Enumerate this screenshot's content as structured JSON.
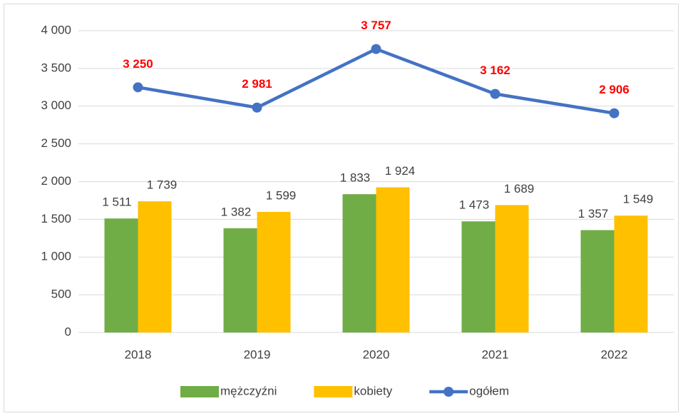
{
  "chart_data": {
    "type": "bar",
    "categories": [
      "2018",
      "2019",
      "2020",
      "2021",
      "2022"
    ],
    "series": [
      {
        "name": "mężczyźni",
        "color": "#70ad47",
        "kind": "bar",
        "values": [
          1511,
          1382,
          1833,
          1473,
          1357
        ],
        "value_labels": [
          "1 511",
          "1 382",
          "1 833",
          "1 473",
          "1 357"
        ]
      },
      {
        "name": "kobiety",
        "color": "#ffc000",
        "kind": "bar",
        "values": [
          1739,
          1599,
          1924,
          1689,
          1549
        ],
        "value_labels": [
          "1 739",
          "1 599",
          "1 924",
          "1 689",
          "1 549"
        ]
      },
      {
        "name": "ogółem",
        "color": "#4472c4",
        "kind": "line",
        "label_color": "#ff0000",
        "values": [
          3250,
          2981,
          3757,
          3162,
          2906
        ],
        "value_labels": [
          "3 250",
          "2 981",
          "3 757",
          "3 162",
          "2 906"
        ]
      }
    ],
    "ylim": [
      0,
      4000
    ],
    "yticks": [
      0,
      500,
      {
        "value": 1000,
        "label": "1 000"
      },
      {
        "value": 1500,
        "label": "1 500"
      },
      {
        "value": 2000,
        "label": "2 000"
      },
      {
        "value": 2500,
        "label": "2 500"
      },
      {
        "value": 3000,
        "label": "3 000"
      },
      {
        "value": 3500,
        "label": "3 500"
      },
      {
        "value": 4000,
        "label": "4 000"
      }
    ],
    "grid": true,
    "legend": "bottom"
  }
}
